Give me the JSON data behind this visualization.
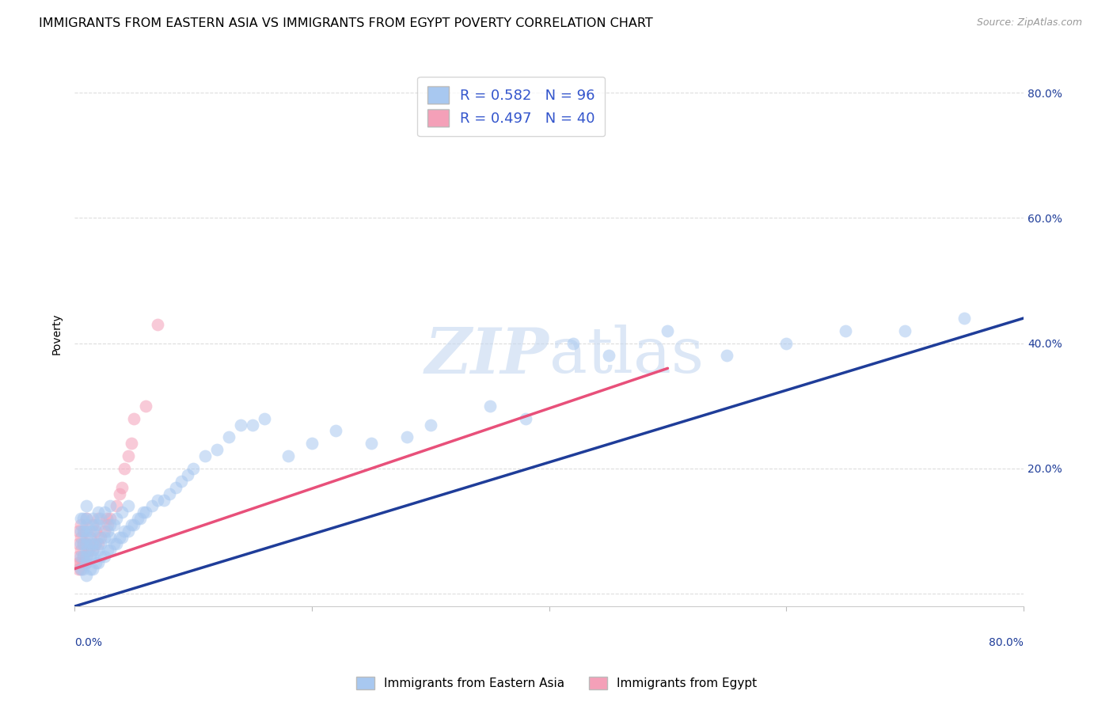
{
  "title": "IMMIGRANTS FROM EASTERN ASIA VS IMMIGRANTS FROM EGYPT POVERTY CORRELATION CHART",
  "source": "Source: ZipAtlas.com",
  "ylabel": "Poverty",
  "watermark": "ZIPatlas",
  "xlim": [
    0.0,
    0.8
  ],
  "ylim": [
    -0.02,
    0.85
  ],
  "y_ticks": [
    0.0,
    0.2,
    0.4,
    0.6,
    0.8
  ],
  "y_tick_labels": [
    "",
    "20.0%",
    "40.0%",
    "60.0%",
    "80.0%"
  ],
  "blue_R": 0.582,
  "blue_N": 96,
  "pink_R": 0.497,
  "pink_N": 40,
  "blue_color": "#a8c8f0",
  "pink_color": "#f4a0b8",
  "blue_line_color": "#1f3d99",
  "pink_line_color": "#e8507a",
  "legend_text_color": "#3355cc",
  "background_color": "#ffffff",
  "grid_color": "#dddddd",
  "title_fontsize": 11.5,
  "axis_label_fontsize": 10,
  "tick_label_fontsize": 10,
  "legend_fontsize": 13,
  "blue_scatter_x": [
    0.005,
    0.005,
    0.005,
    0.005,
    0.005,
    0.007,
    0.007,
    0.007,
    0.007,
    0.007,
    0.01,
    0.01,
    0.01,
    0.01,
    0.01,
    0.01,
    0.01,
    0.01,
    0.01,
    0.01,
    0.013,
    0.013,
    0.013,
    0.013,
    0.015,
    0.015,
    0.015,
    0.015,
    0.015,
    0.015,
    0.018,
    0.018,
    0.018,
    0.02,
    0.02,
    0.02,
    0.02,
    0.02,
    0.022,
    0.022,
    0.022,
    0.025,
    0.025,
    0.025,
    0.028,
    0.028,
    0.03,
    0.03,
    0.03,
    0.03,
    0.033,
    0.033,
    0.035,
    0.035,
    0.038,
    0.04,
    0.04,
    0.042,
    0.045,
    0.045,
    0.048,
    0.05,
    0.053,
    0.055,
    0.058,
    0.06,
    0.065,
    0.07,
    0.075,
    0.08,
    0.085,
    0.09,
    0.095,
    0.1,
    0.11,
    0.12,
    0.13,
    0.14,
    0.15,
    0.16,
    0.18,
    0.2,
    0.22,
    0.25,
    0.28,
    0.3,
    0.35,
    0.38,
    0.42,
    0.45,
    0.5,
    0.55,
    0.6,
    0.65,
    0.7,
    0.75
  ],
  "blue_scatter_y": [
    0.04,
    0.06,
    0.08,
    0.1,
    0.12,
    0.04,
    0.06,
    0.08,
    0.1,
    0.12,
    0.03,
    0.05,
    0.06,
    0.07,
    0.08,
    0.09,
    0.1,
    0.11,
    0.12,
    0.14,
    0.04,
    0.06,
    0.08,
    0.1,
    0.04,
    0.06,
    0.07,
    0.08,
    0.1,
    0.12,
    0.05,
    0.08,
    0.11,
    0.05,
    0.07,
    0.09,
    0.11,
    0.13,
    0.06,
    0.08,
    0.12,
    0.06,
    0.09,
    0.13,
    0.07,
    0.1,
    0.07,
    0.09,
    0.11,
    0.14,
    0.08,
    0.11,
    0.08,
    0.12,
    0.09,
    0.09,
    0.13,
    0.1,
    0.1,
    0.14,
    0.11,
    0.11,
    0.12,
    0.12,
    0.13,
    0.13,
    0.14,
    0.15,
    0.15,
    0.16,
    0.17,
    0.18,
    0.19,
    0.2,
    0.22,
    0.23,
    0.25,
    0.27,
    0.27,
    0.28,
    0.22,
    0.24,
    0.26,
    0.24,
    0.25,
    0.27,
    0.3,
    0.28,
    0.4,
    0.38,
    0.42,
    0.38,
    0.4,
    0.42,
    0.42,
    0.44
  ],
  "pink_scatter_x": [
    0.003,
    0.003,
    0.003,
    0.003,
    0.003,
    0.005,
    0.005,
    0.005,
    0.005,
    0.005,
    0.007,
    0.007,
    0.007,
    0.008,
    0.009,
    0.01,
    0.01,
    0.01,
    0.012,
    0.013,
    0.015,
    0.015,
    0.017,
    0.018,
    0.02,
    0.02,
    0.022,
    0.025,
    0.027,
    0.028,
    0.03,
    0.035,
    0.038,
    0.04,
    0.042,
    0.045,
    0.048,
    0.05,
    0.06,
    0.07
  ],
  "pink_scatter_y": [
    0.04,
    0.05,
    0.06,
    0.08,
    0.1,
    0.04,
    0.05,
    0.07,
    0.09,
    0.11,
    0.05,
    0.06,
    0.08,
    0.1,
    0.05,
    0.06,
    0.08,
    0.12,
    0.07,
    0.09,
    0.07,
    0.11,
    0.08,
    0.1,
    0.08,
    0.12,
    0.09,
    0.1,
    0.12,
    0.11,
    0.12,
    0.14,
    0.16,
    0.17,
    0.2,
    0.22,
    0.24,
    0.28,
    0.3,
    0.43
  ],
  "blue_line_x": [
    0.0,
    0.8
  ],
  "blue_line_y": [
    -0.02,
    0.44
  ],
  "pink_line_x": [
    0.0,
    0.5
  ],
  "pink_line_y": [
    0.04,
    0.36
  ]
}
